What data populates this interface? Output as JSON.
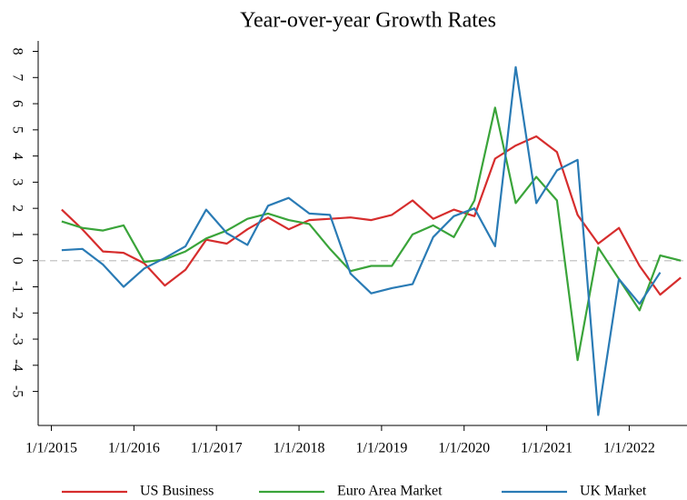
{
  "chart_data": {
    "type": "line",
    "title": "Year-over-year Growth Rates",
    "x": [
      2015.125,
      2015.375,
      2015.625,
      2015.875,
      2016.125,
      2016.375,
      2016.625,
      2016.875,
      2017.125,
      2017.375,
      2017.625,
      2017.875,
      2018.125,
      2018.375,
      2018.625,
      2018.875,
      2019.125,
      2019.375,
      2019.625,
      2019.875,
      2020.125,
      2020.375,
      2020.625,
      2020.875,
      2021.125,
      2021.375,
      2021.625,
      2021.875,
      2022.125,
      2022.375,
      2022.625
    ],
    "series": [
      {
        "name": "US Business",
        "color": "#d62d2d",
        "values": [
          1.95,
          1.2,
          0.35,
          0.3,
          -0.1,
          -0.95,
          -0.35,
          0.8,
          0.65,
          1.2,
          1.65,
          1.2,
          1.55,
          1.6,
          1.65,
          1.55,
          1.75,
          2.3,
          1.6,
          1.95,
          1.7,
          3.9,
          4.4,
          4.75,
          4.15,
          1.75,
          0.65,
          1.25,
          -0.2,
          -1.3,
          -0.65
        ]
      },
      {
        "name": "Euro Area Market",
        "color": "#3aa43a",
        "values": [
          1.5,
          1.25,
          1.15,
          1.35,
          -0.05,
          0.05,
          0.35,
          0.85,
          1.15,
          1.6,
          1.8,
          1.55,
          1.4,
          0.45,
          -0.4,
          -0.2,
          -0.2,
          1.0,
          1.35,
          0.9,
          2.3,
          5.85,
          2.2,
          3.2,
          2.3,
          -3.8,
          0.5,
          -0.7,
          -1.9,
          0.2,
          0.0
        ]
      },
      {
        "name": "UK Market",
        "color": "#2a7bb5",
        "values": [
          0.4,
          0.45,
          -0.15,
          -1.0,
          -0.3,
          0.1,
          0.55,
          1.95,
          1.05,
          0.6,
          2.1,
          2.4,
          1.8,
          1.75,
          -0.5,
          -1.25,
          -1.05,
          -0.9,
          0.9,
          1.7,
          2.0,
          0.55,
          7.4,
          2.2,
          3.45,
          3.85,
          -5.9,
          -0.7,
          -1.65,
          -0.45,
          null
        ]
      }
    ],
    "xlim": [
      2014.84,
      2022.7
    ],
    "xticks": [
      {
        "value": 2015,
        "label": "1/1/2015"
      },
      {
        "value": 2016,
        "label": "1/1/2016"
      },
      {
        "value": 2017,
        "label": "1/1/2017"
      },
      {
        "value": 2018,
        "label": "1/1/2018"
      },
      {
        "value": 2019,
        "label": "1/1/2019"
      },
      {
        "value": 2020,
        "label": "1/1/2020"
      },
      {
        "value": 2021,
        "label": "1/1/2021"
      },
      {
        "value": 2022,
        "label": "1/1/2022"
      }
    ],
    "ylim": [
      -6.3,
      8.4
    ],
    "yticks": [
      -5,
      -4,
      -3,
      -2,
      -1,
      0,
      1,
      2,
      3,
      4,
      5,
      6,
      7,
      8
    ],
    "legend": "bottom"
  }
}
